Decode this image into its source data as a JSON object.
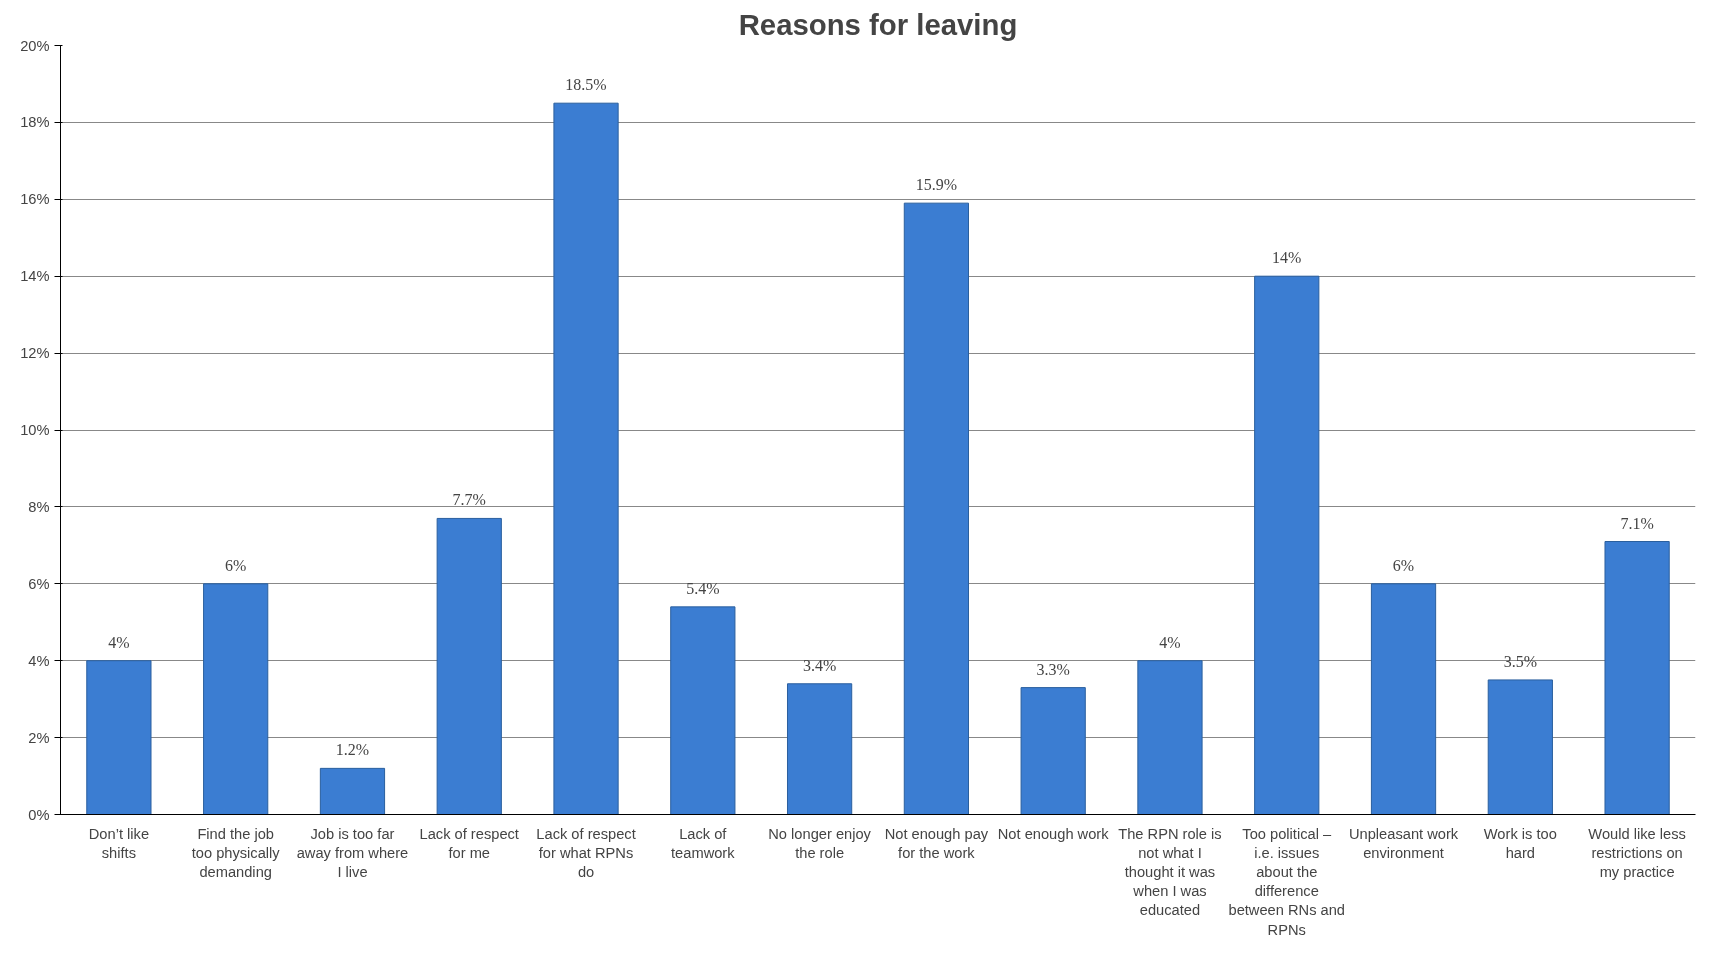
{
  "chart_data": {
    "type": "bar",
    "title": "Reasons for leaving",
    "categories": [
      "Don’t like shifts",
      "Find the job too physically demanding",
      "Job is too far away from where I live",
      "Lack of respect for me",
      "Lack of respect for what RPNs do",
      "Lack of teamwork",
      "No longer enjoy the role",
      "Not enough pay for the work",
      "Not enough work",
      "The RPN role is not what I thought it was when I was educated",
      "Too political – i.e. issues about the difference between RNs and RPNs",
      "Unpleasant work environment",
      "Work is too hard",
      "Would like less restrictions on my practice"
    ],
    "values": [
      4,
      6,
      1.2,
      7.7,
      18.5,
      5.4,
      3.4,
      15.9,
      3.3,
      4,
      14,
      6,
      3.5,
      7.1
    ],
    "value_labels": [
      "4%",
      "6%",
      "1.2%",
      "7.7%",
      "18.5%",
      "5.4%",
      "3.4%",
      "15.9%",
      "3.3%",
      "4%",
      "14%",
      "6%",
      "3.5%",
      "7.1%"
    ],
    "color": "#3b7dd2",
    "ylim": [
      0,
      20
    ],
    "yticks": [
      {
        "value": 0,
        "label": "0%"
      },
      {
        "value": 2,
        "label": "2%"
      },
      {
        "value": 4,
        "label": "4%"
      },
      {
        "value": 6,
        "label": "6%"
      },
      {
        "value": 8,
        "label": "8%"
      },
      {
        "value": 10,
        "label": "10%"
      },
      {
        "value": 12,
        "label": "12%"
      },
      {
        "value": 14,
        "label": "14%"
      },
      {
        "value": 16,
        "label": "16%"
      },
      {
        "value": 18,
        "label": "18%"
      },
      {
        "value": 20,
        "label": "20%"
      }
    ],
    "grid": "y"
  }
}
